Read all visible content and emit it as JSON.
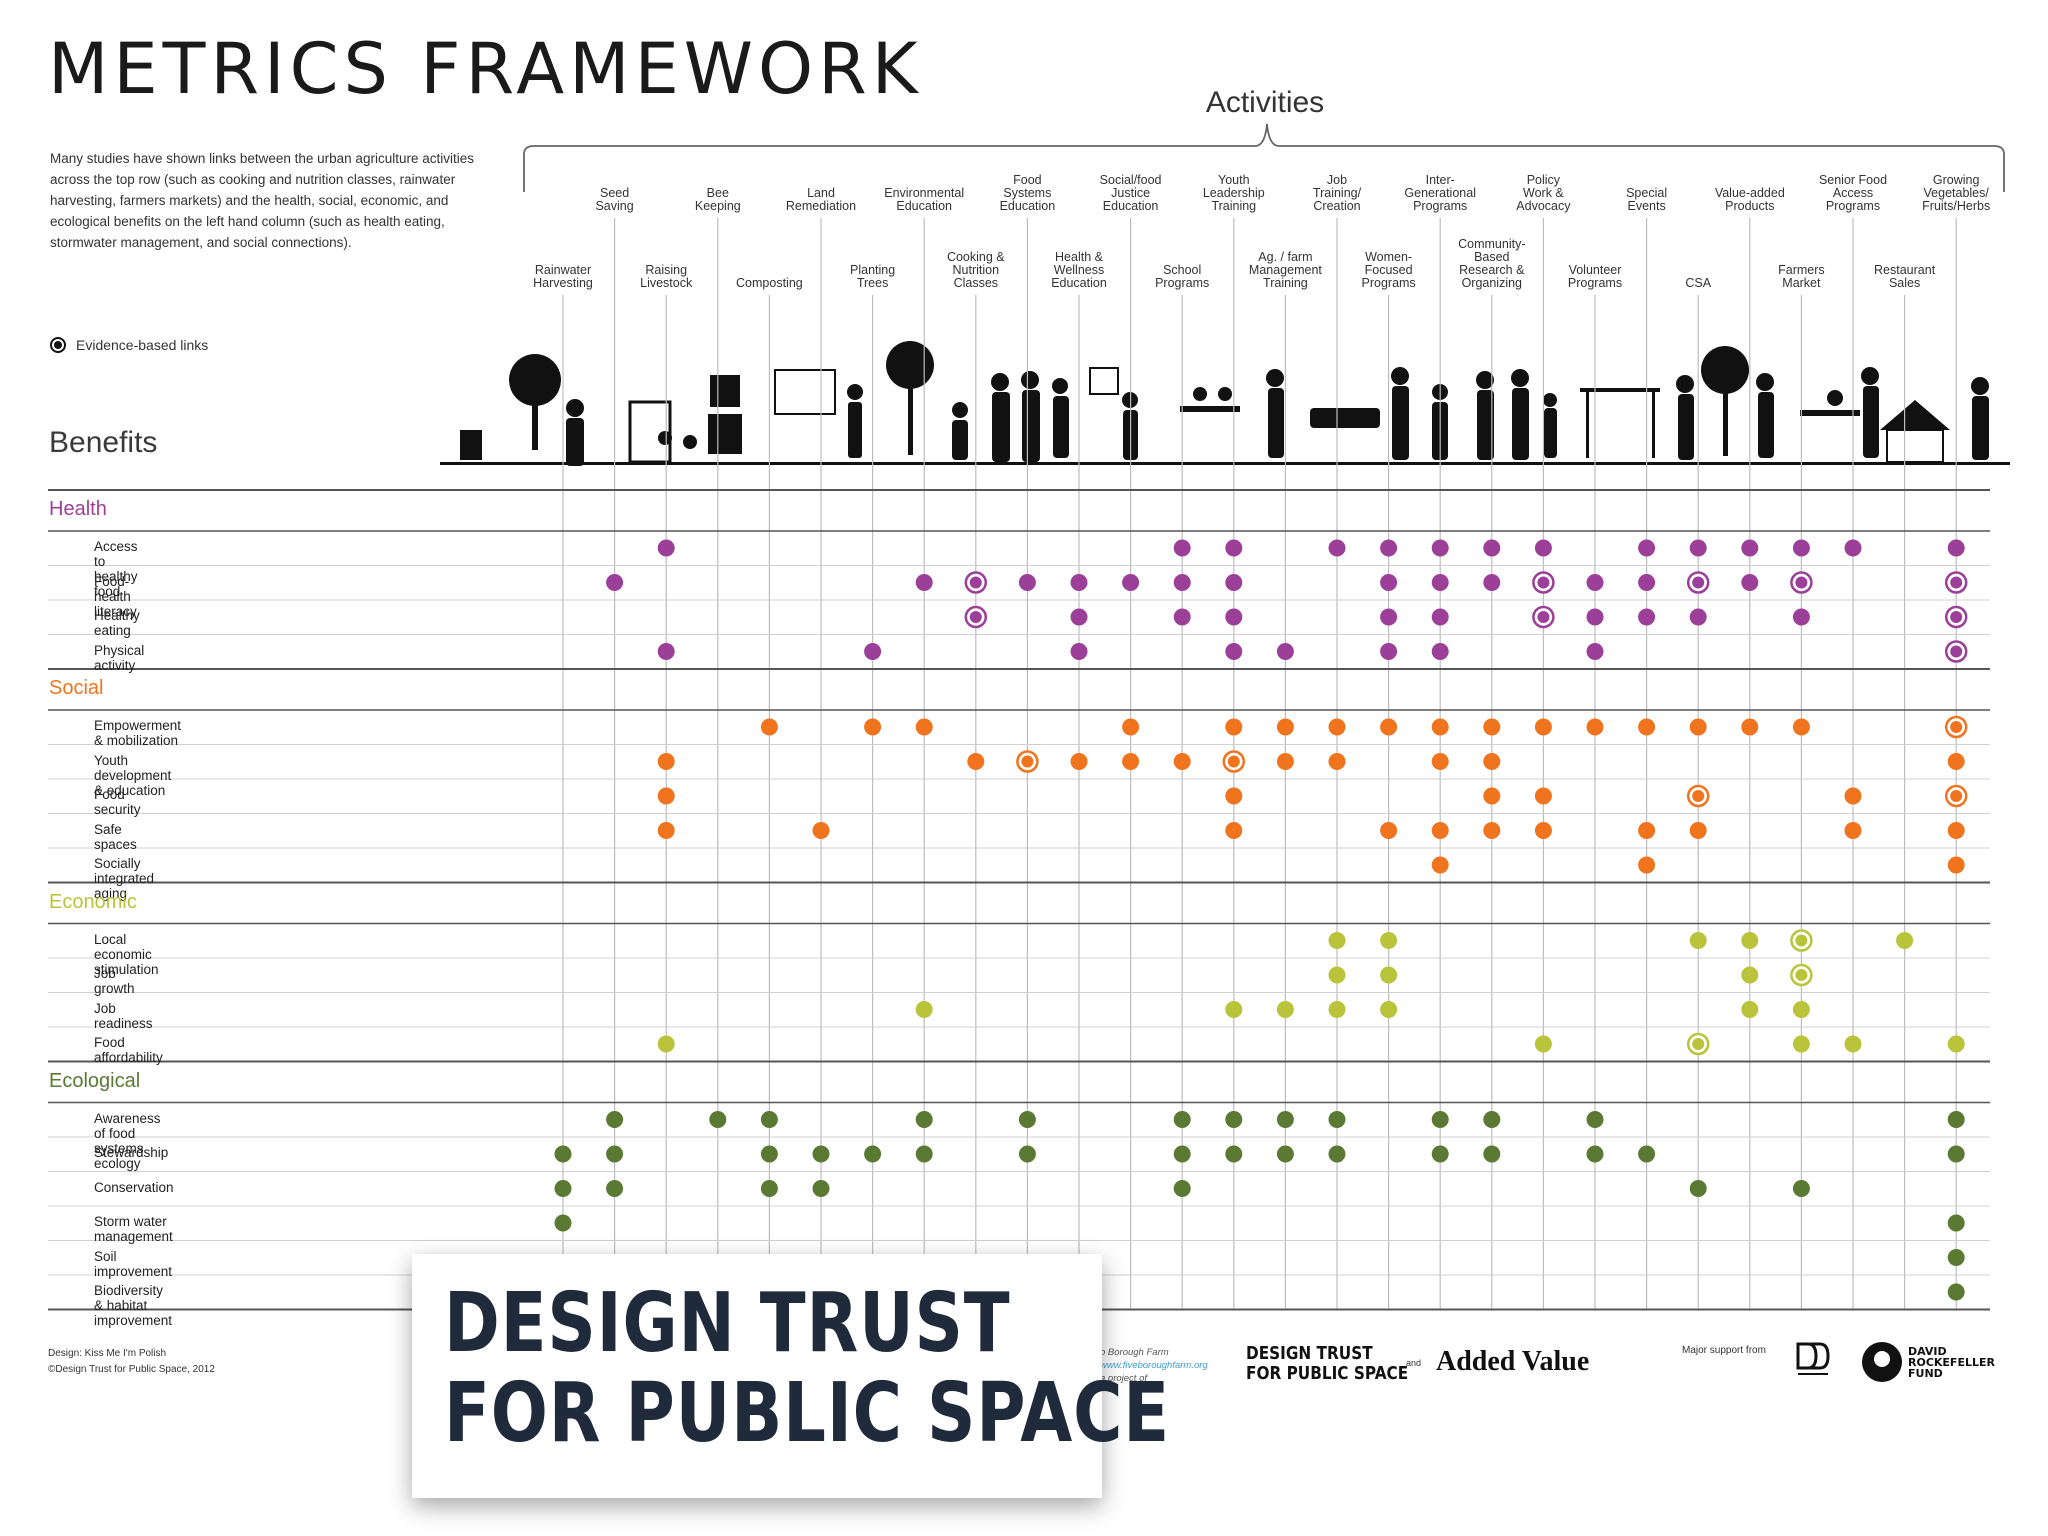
{
  "title": "METRICS FRAMEWORK",
  "intro": "Many studies have shown links between the urban agriculture activities across the top row (such as cooking and nutrition classes, rainwater harvesting, farmers markets) and the health, social, economic, and ecological benefits on the left hand column (such as health eating, stormwater management, and social connections).",
  "legend_label": "Evidence-based links",
  "activities_heading": "Activities",
  "benefits_heading": "Benefits",
  "colors": {
    "health": "#9c3f98",
    "social": "#f0731e",
    "economic": "#b9c43a",
    "ecological": "#5a7a34",
    "gridline": "#bdbdbd",
    "rule": "#555555"
  },
  "activities": [
    [
      "Rainwater",
      "Harvesting"
    ],
    [
      "Seed",
      "Saving"
    ],
    [
      "Raising",
      "Livestock"
    ],
    [
      "Bee",
      "Keeping"
    ],
    [
      "Composting"
    ],
    [
      "Land",
      "Remediation"
    ],
    [
      "Planting",
      "Trees"
    ],
    [
      "Environmental",
      "Education"
    ],
    [
      "Cooking &",
      "Nutrition",
      "Classes"
    ],
    [
      "Food",
      "Systems",
      "Education"
    ],
    [
      "Health &",
      "Wellness",
      "Education"
    ],
    [
      "Social/food",
      "Justice",
      "Education"
    ],
    [
      "School",
      "Programs"
    ],
    [
      "Youth",
      "Leadership",
      "Training"
    ],
    [
      "Ag. / farm",
      "Management",
      "Training"
    ],
    [
      "Job",
      "Training/",
      "Creation"
    ],
    [
      "Women-",
      "Focused",
      "Programs"
    ],
    [
      "Inter-",
      "Generational",
      "Programs"
    ],
    [
      "Community-",
      "Based",
      "Research &",
      "Organizing"
    ],
    [
      "Policy",
      "Work &",
      "Advocacy"
    ],
    [
      "Volunteer",
      "Programs"
    ],
    [
      "Special",
      "Events"
    ],
    [
      "CSA"
    ],
    [
      "Value-added",
      "Products"
    ],
    [
      "Farmers",
      "Market"
    ],
    [
      "Senior Food",
      "Access",
      "Programs"
    ],
    [
      "Restaurant",
      "Sales"
    ],
    [
      "Growing",
      "Vegetables/",
      "Fruits/Herbs"
    ]
  ],
  "sections": [
    {
      "name": "Health",
      "color_key": "health",
      "rows": [
        {
          "label": "Access to healthy food",
          "dots": [
            2,
            12,
            13,
            15,
            16,
            17,
            18,
            19,
            21,
            22,
            23,
            24,
            25,
            27
          ],
          "evidence": []
        },
        {
          "label": "Food-health literacy",
          "dots": [
            1,
            7,
            8,
            9,
            10,
            11,
            12,
            13,
            16,
            17,
            18,
            19,
            20,
            21,
            22,
            23,
            24,
            27
          ],
          "evidence": [
            8,
            19,
            22,
            24,
            27
          ]
        },
        {
          "label": "Healthy eating",
          "dots": [
            8,
            10,
            12,
            13,
            16,
            17,
            19,
            20,
            21,
            22,
            24,
            27
          ],
          "evidence": [
            8,
            19,
            27
          ]
        },
        {
          "label": "Physical activity",
          "dots": [
            2,
            6,
            10,
            13,
            14,
            16,
            17,
            20,
            27
          ],
          "evidence": [
            27
          ]
        }
      ]
    },
    {
      "name": "Social",
      "color_key": "social",
      "rows": [
        {
          "label": "Empowerment & mobilization",
          "dots": [
            4,
            6,
            7,
            11,
            13,
            14,
            15,
            16,
            17,
            18,
            19,
            20,
            21,
            22,
            23,
            24,
            27
          ],
          "evidence": [
            27
          ]
        },
        {
          "label": "Youth development & education",
          "dots": [
            2,
            8,
            9,
            10,
            11,
            12,
            13,
            14,
            15,
            17,
            18,
            27
          ],
          "evidence": [
            9,
            13
          ]
        },
        {
          "label": "Food security",
          "dots": [
            2,
            13,
            18,
            19,
            22,
            25,
            27
          ],
          "evidence": [
            22,
            27
          ]
        },
        {
          "label": "Safe spaces",
          "dots": [
            2,
            5,
            13,
            16,
            17,
            18,
            19,
            21,
            22,
            25,
            27
          ],
          "evidence": []
        },
        {
          "label": "Socially integrated aging",
          "dots": [
            17,
            21,
            27
          ],
          "evidence": []
        }
      ]
    },
    {
      "name": "Economic",
      "color_key": "economic",
      "rows": [
        {
          "label": "Local economic stimulation",
          "dots": [
            15,
            16,
            22,
            23,
            24,
            26
          ],
          "evidence": [
            24
          ]
        },
        {
          "label": "Job growth",
          "dots": [
            15,
            16,
            23,
            24
          ],
          "evidence": [
            24
          ]
        },
        {
          "label": "Job readiness",
          "dots": [
            7,
            13,
            14,
            15,
            16,
            23,
            24
          ],
          "evidence": []
        },
        {
          "label": "Food affordability",
          "dots": [
            2,
            19,
            22,
            24,
            25,
            27
          ],
          "evidence": [
            22
          ]
        }
      ]
    },
    {
      "name": "Ecological",
      "color_key": "ecological",
      "rows": [
        {
          "label": "Awareness of food systems ecology",
          "dots": [
            1,
            3,
            4,
            7,
            9,
            12,
            13,
            14,
            15,
            17,
            18,
            20,
            27
          ],
          "evidence": []
        },
        {
          "label": "Stewardship",
          "dots": [
            0,
            1,
            4,
            5,
            6,
            7,
            9,
            12,
            13,
            14,
            15,
            17,
            18,
            20,
            21,
            27
          ],
          "evidence": []
        },
        {
          "label": "Conservation",
          "dots": [
            0,
            1,
            4,
            5,
            12,
            22,
            24
          ],
          "evidence": []
        },
        {
          "label": "Storm water management",
          "dots": [
            0,
            27
          ],
          "evidence": []
        },
        {
          "label": "Soil improvement",
          "dots": [
            27
          ],
          "evidence": []
        },
        {
          "label": "Biodiversity & habitat improvement",
          "dots": [
            27
          ],
          "evidence": []
        }
      ]
    }
  ],
  "credits": [
    "Design: Kiss Me I'm Polish",
    "©Design Trust for Public Space, 2012"
  ],
  "overlay_lines": [
    "DESIGN TRUST",
    "FOR PUBLIC SPACE"
  ],
  "footer_note": [
    "o Borough Farm",
    "www.fiveboroughfarm.org",
    "a project of"
  ],
  "footer_logo_dtps": [
    "DESIGN TRUST",
    "FOR PUBLIC SPACE"
  ],
  "footer_and": "and",
  "footer_logo_av": "Added Value",
  "support_label": "Major support from",
  "drf_logo": [
    "DAVID",
    "ROCKEFELLER",
    "FUND"
  ]
}
